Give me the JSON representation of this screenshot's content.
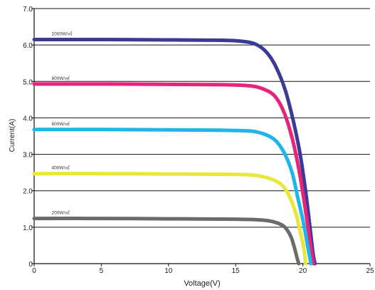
{
  "chart_data": {
    "type": "line",
    "title": "",
    "xlabel": "Voltage(V)",
    "ylabel": "Current(A)",
    "xlim": [
      0,
      25
    ],
    "ylim": [
      0,
      7
    ],
    "x_ticks": [
      "0",
      "5",
      "10",
      "15",
      "20",
      "25"
    ],
    "y_ticks": [
      "0",
      "1.0",
      "2.0",
      "3.0",
      "4.0",
      "5.0",
      "6.0",
      "7.0"
    ],
    "grid": "horizontal",
    "legend": "inline labels above curves",
    "series": [
      {
        "name": "1000W/㎡",
        "color": "#3b3b96",
        "points": [
          [
            0,
            6.15
          ],
          [
            5,
            6.15
          ],
          [
            10,
            6.14
          ],
          [
            14,
            6.13
          ],
          [
            15.5,
            6.1
          ],
          [
            16.5,
            6.02
          ],
          [
            17.3,
            5.8
          ],
          [
            18.0,
            5.4
          ],
          [
            18.7,
            4.75
          ],
          [
            19.3,
            3.9
          ],
          [
            19.8,
            3.0
          ],
          [
            20.2,
            2.0
          ],
          [
            20.5,
            1.1
          ],
          [
            20.75,
            0.3
          ],
          [
            20.9,
            0
          ]
        ]
      },
      {
        "name": "800W/㎡",
        "color": "#e8237a",
        "points": [
          [
            0,
            4.93
          ],
          [
            5,
            4.93
          ],
          [
            10,
            4.92
          ],
          [
            14,
            4.91
          ],
          [
            16.0,
            4.88
          ],
          [
            17.0,
            4.8
          ],
          [
            17.9,
            4.6
          ],
          [
            18.6,
            4.15
          ],
          [
            19.2,
            3.45
          ],
          [
            19.7,
            2.6
          ],
          [
            20.1,
            1.7
          ],
          [
            20.4,
            0.95
          ],
          [
            20.65,
            0.3
          ],
          [
            20.8,
            0
          ]
        ]
      },
      {
        "name": "600W/㎡",
        "color": "#1fb5e8",
        "points": [
          [
            0,
            3.68
          ],
          [
            5,
            3.68
          ],
          [
            10,
            3.67
          ],
          [
            14,
            3.66
          ],
          [
            16.0,
            3.64
          ],
          [
            17.0,
            3.57
          ],
          [
            17.9,
            3.4
          ],
          [
            18.6,
            3.05
          ],
          [
            19.2,
            2.5
          ],
          [
            19.6,
            1.85
          ],
          [
            20.0,
            1.2
          ],
          [
            20.3,
            0.6
          ],
          [
            20.5,
            0.2
          ],
          [
            20.6,
            0
          ]
        ]
      },
      {
        "name": "400W/㎡",
        "color": "#e8e83a",
        "points": [
          [
            0,
            2.47
          ],
          [
            5,
            2.47
          ],
          [
            10,
            2.46
          ],
          [
            15,
            2.45
          ],
          [
            16.5,
            2.42
          ],
          [
            17.5,
            2.34
          ],
          [
            18.4,
            2.17
          ],
          [
            19.0,
            1.85
          ],
          [
            19.5,
            1.35
          ],
          [
            19.85,
            0.8
          ],
          [
            20.1,
            0.35
          ],
          [
            20.2,
            0
          ]
        ]
      },
      {
        "name": "200W/㎡",
        "color": "#6b6b6b",
        "points": [
          [
            0,
            1.24
          ],
          [
            5,
            1.24
          ],
          [
            10,
            1.23
          ],
          [
            15,
            1.22
          ],
          [
            16.8,
            1.2
          ],
          [
            17.8,
            1.15
          ],
          [
            18.6,
            1.02
          ],
          [
            19.1,
            0.75
          ],
          [
            19.4,
            0.4
          ],
          [
            19.6,
            0.12
          ],
          [
            19.7,
            0
          ]
        ]
      }
    ]
  }
}
